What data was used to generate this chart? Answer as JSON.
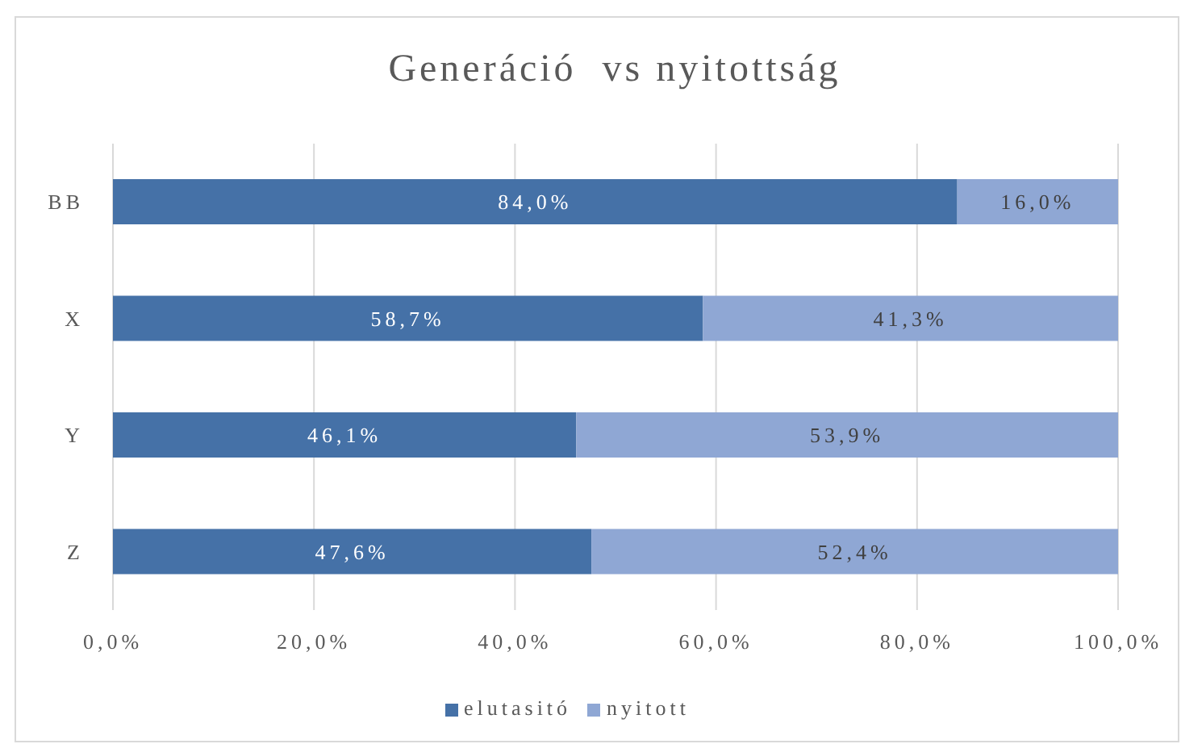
{
  "chart_data": {
    "type": "bar",
    "title": "Generáció  vs nyitottság",
    "orientation": "horizontal",
    "stacked": true,
    "categories": [
      "BB",
      "X",
      "Y",
      "Z"
    ],
    "series": [
      {
        "name": "elutasitó",
        "color": "#4571a7",
        "values": [
          84.0,
          58.7,
          46.1,
          47.6
        ],
        "value_labels": [
          "84,0%",
          "58,7%",
          "46,1%",
          "47,6%"
        ]
      },
      {
        "name": "nyitott",
        "color": "#8fa7d4",
        "values": [
          16.0,
          41.3,
          53.9,
          52.4
        ],
        "value_labels": [
          "16,0%",
          "41,3%",
          "53,9%",
          "52,4%"
        ]
      }
    ],
    "xlim": [
      0,
      100
    ],
    "xticks": [
      {
        "value": 0,
        "label": "0,0%"
      },
      {
        "value": 20,
        "label": "20,0%"
      },
      {
        "value": 40,
        "label": "40,0%"
      },
      {
        "value": 60,
        "label": "60,0%"
      },
      {
        "value": 80,
        "label": "80,0%"
      },
      {
        "value": 100,
        "label": "100,0%"
      }
    ],
    "grid": "x",
    "legend": "bottom"
  }
}
